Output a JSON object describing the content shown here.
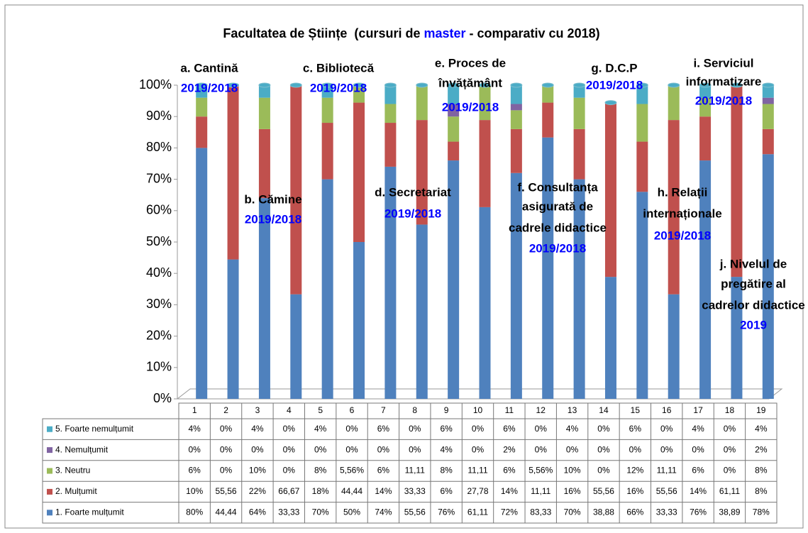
{
  "chart_data": {
    "type": "stacked_bar",
    "title_parts": [
      "Facultatea de Științe  (cursuri de ",
      "master",
      " - comparativ cu 2018)"
    ],
    "categories": [
      "1",
      "2",
      "3",
      "4",
      "5",
      "6",
      "7",
      "8",
      "9",
      "10",
      "11",
      "12",
      "13",
      "14",
      "15",
      "16",
      "17",
      "18",
      "19"
    ],
    "ylim": [
      0,
      100
    ],
    "yticks": [
      {
        "value": 0,
        "label": "0%"
      },
      {
        "value": 10,
        "label": "10%"
      },
      {
        "value": 20,
        "label": "20%"
      },
      {
        "value": 30,
        "label": "30%"
      },
      {
        "value": 40,
        "label": "40%"
      },
      {
        "value": 50,
        "label": "50%"
      },
      {
        "value": 60,
        "label": "60%"
      },
      {
        "value": 70,
        "label": "70%"
      },
      {
        "value": 80,
        "label": "80%"
      },
      {
        "value": 90,
        "label": "90%"
      },
      {
        "value": 100,
        "label": "100%"
      }
    ],
    "grid": false,
    "series": [
      {
        "name": "5. Foarte nemulțumit",
        "color": "#4bacc6",
        "values": [
          4,
          0,
          4,
          0,
          4,
          0,
          6,
          0,
          6,
          0,
          6,
          0,
          4,
          0,
          6,
          0,
          4,
          0,
          4
        ],
        "value_labels": [
          "4%",
          "0%",
          "4%",
          "0%",
          "4%",
          "0%",
          "6%",
          "0%",
          "6%",
          "0%",
          "6%",
          "0%",
          "4%",
          "0%",
          "6%",
          "0%",
          "4%",
          "0%",
          "4%"
        ]
      },
      {
        "name": "4. Nemulțumit",
        "color": "#8064a2",
        "values": [
          0,
          0,
          0,
          0,
          0,
          0,
          0,
          0,
          4,
          0,
          2,
          0,
          0,
          0,
          0,
          0,
          0,
          0,
          2
        ],
        "value_labels": [
          "0%",
          "0%",
          "0%",
          "0%",
          "0%",
          "0%",
          "0%",
          "0%",
          "4%",
          "0%",
          "2%",
          "0%",
          "0%",
          "0%",
          "0%",
          "0%",
          "0%",
          "0%",
          "2%"
        ]
      },
      {
        "name": "3. Neutru",
        "color": "#9bbb59",
        "values": [
          6,
          0,
          10,
          0,
          8,
          5.56,
          6,
          11.11,
          8,
          11.11,
          6,
          5.56,
          10,
          0,
          12,
          11.11,
          6,
          0,
          8
        ],
        "value_labels": [
          "6%",
          "0%",
          "10%",
          "0%",
          "8%",
          "5,56%",
          "6%",
          "11,11",
          "8%",
          "11,11",
          "6%",
          "5,56%",
          "10%",
          "0%",
          "12%",
          "11,11",
          "6%",
          "0%",
          "8%"
        ]
      },
      {
        "name": "2. Mulțumit",
        "color": "#c0504d",
        "values": [
          10,
          55.56,
          22,
          66.67,
          18,
          44.44,
          14,
          33.33,
          6,
          27.78,
          14,
          11.11,
          16,
          55.56,
          16,
          55.56,
          14,
          61.11,
          8
        ],
        "value_labels": [
          "10%",
          "55,56",
          "22%",
          "66,67",
          "18%",
          "44,44",
          "14%",
          "33,33",
          "6%",
          "27,78",
          "14%",
          "11,11",
          "16%",
          "55,56",
          "16%",
          "55,56",
          "14%",
          "61,11",
          "8%"
        ]
      },
      {
        "name": "1. Foarte mulțumit",
        "color": "#4f81bd",
        "values": [
          80,
          44.44,
          64,
          33.33,
          70,
          50,
          74,
          55.56,
          76,
          61.11,
          72,
          83.33,
          70,
          38.88,
          66,
          33.33,
          76,
          38.89,
          78
        ],
        "value_labels": [
          "80%",
          "44,44",
          "64%",
          "33,33",
          "70%",
          "50%",
          "74%",
          "55,56",
          "76%",
          "61,11",
          "72%",
          "83,33",
          "70%",
          "38,88",
          "66%",
          "33,33",
          "76%",
          "38,89",
          "78%"
        ]
      }
    ],
    "annotations": [
      {
        "lines": [
          "a. Cantină"
        ],
        "period": "2019/2018"
      },
      {
        "lines": [
          "b. Cămine"
        ],
        "period": "2019/2018"
      },
      {
        "lines": [
          "c. Bibliotecă"
        ],
        "period": "2019/2018"
      },
      {
        "lines": [
          "d. Secretariat"
        ],
        "period": "2019/2018"
      },
      {
        "lines": [
          "e. Proces de",
          "învățământ"
        ],
        "period": "2019/2018"
      },
      {
        "lines": [
          "f. Consultanța",
          "asigurată de",
          "cadrele didactice"
        ],
        "period": "2019/2018"
      },
      {
        "lines": [
          "g. D.C.P"
        ],
        "period": "2019/2018"
      },
      {
        "lines": [
          "h. Relații",
          "internaționale"
        ],
        "period": "2019/2018"
      },
      {
        "lines": [
          "i. Serviciul",
          "informatizare"
        ],
        "period": "2019/2018"
      },
      {
        "lines": [
          "j. Nivelul de",
          "pregătire al",
          "cadrelor didactice"
        ],
        "period": "2019"
      }
    ]
  }
}
